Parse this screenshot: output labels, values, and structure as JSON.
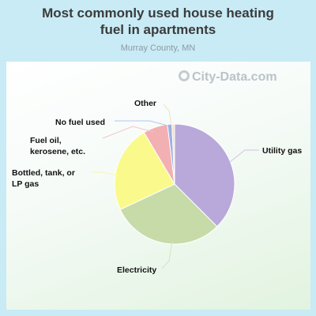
{
  "chart_data": {
    "type": "pie",
    "title": "Most commonly used house heating fuel in apartments",
    "subtitle": "Murray County, MN",
    "slices": [
      {
        "label": "Utility gas",
        "value": 37.5,
        "color": "#b9a9da"
      },
      {
        "label": "Electricity",
        "value": 30.5,
        "color": "#c6dba8"
      },
      {
        "label": "Bottled, tank, or LP gas",
        "value": 23.5,
        "color": "#fafa8c"
      },
      {
        "label": "Fuel oil, kerosene, etc.",
        "value": 6.6,
        "color": "#f2b0b2"
      },
      {
        "label": "No fuel used",
        "value": 1.2,
        "color": "#9ab0e6"
      },
      {
        "label": "Other",
        "value": 0.7,
        "color": "#f8dcb8"
      }
    ]
  },
  "labels": {
    "utility_gas": "Utility gas",
    "electricity": "Electricity",
    "bottled_1": "Bottled, tank, or",
    "bottled_2": "LP gas",
    "fuel_1": "Fuel oil,",
    "fuel_2": "kerosene, etc.",
    "no_fuel": "No fuel used",
    "other": "Other"
  },
  "watermark": "City-Data.com"
}
